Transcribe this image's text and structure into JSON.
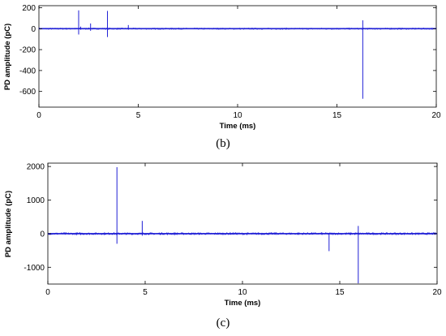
{
  "chart_data": [
    {
      "type": "line",
      "caption": "(b)",
      "xlabel": "Time (ms)",
      "ylabel": "PD amplitude (pC)",
      "xlim": [
        0,
        20
      ],
      "ylim": [
        -750,
        220
      ],
      "xticks": [
        0,
        5,
        10,
        15,
        20
      ],
      "yticks": [
        200,
        0,
        -200,
        -400,
        -600
      ],
      "grid": false,
      "color": "#1f1fd6",
      "noise_level": 5,
      "pulses": [
        {
          "x": 2.0,
          "high": 175,
          "low": -55
        },
        {
          "x": 2.1,
          "high": 20,
          "low": -10
        },
        {
          "x": 2.6,
          "high": 50,
          "low": -20
        },
        {
          "x": 3.45,
          "high": 170,
          "low": -80
        },
        {
          "x": 4.5,
          "high": 35,
          "low": -10
        },
        {
          "x": 16.3,
          "high": 80,
          "low": -670
        }
      ]
    },
    {
      "type": "line",
      "caption": "(c)",
      "xlabel": "Time (ms)",
      "ylabel": "PD amplitude (pC)",
      "xlim": [
        0,
        20
      ],
      "ylim": [
        -1500,
        2100
      ],
      "xticks": [
        0,
        5,
        10,
        15,
        20
      ],
      "yticks": [
        2000,
        1000,
        0,
        -1000
      ],
      "grid": false,
      "color": "#1f1fd6",
      "noise_level": 25,
      "pulses": [
        {
          "x": 3.55,
          "high": 1980,
          "low": -300
        },
        {
          "x": 4.85,
          "high": 380,
          "low": -60
        },
        {
          "x": 14.45,
          "high": 20,
          "low": -520
        },
        {
          "x": 15.95,
          "high": 230,
          "low": -1480
        }
      ]
    }
  ]
}
